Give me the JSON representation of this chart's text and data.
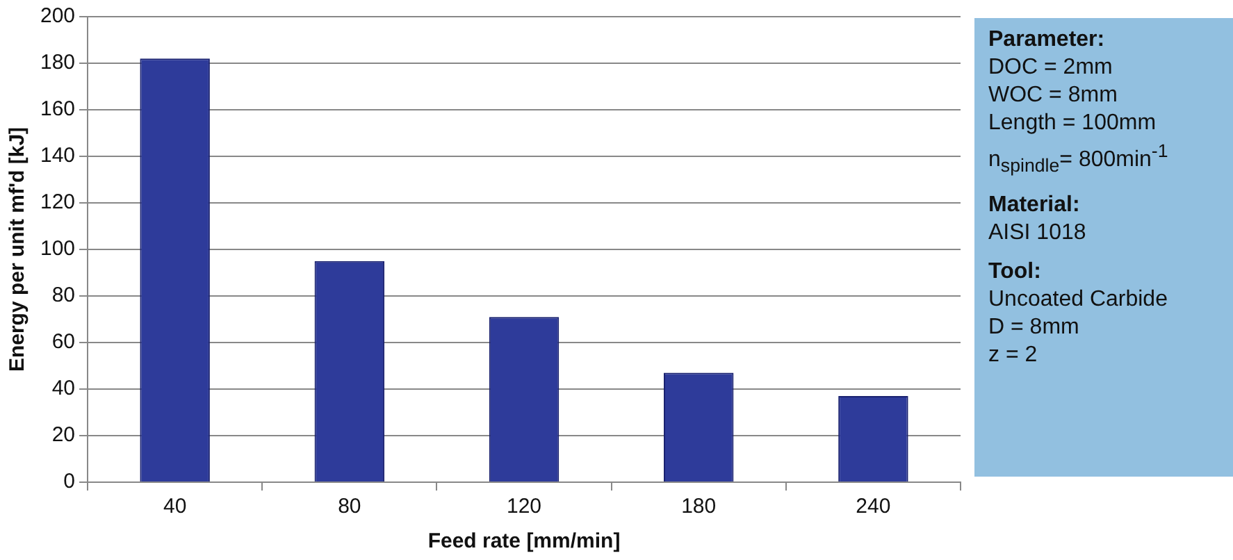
{
  "chart_data": {
    "type": "bar",
    "xlabel": "Feed rate [mm/min]",
    "ylabel": "Energy per unit mf'd [kJ]",
    "categories": [
      "40",
      "80",
      "120",
      "180",
      "240"
    ],
    "values": [
      182,
      95,
      71,
      47,
      37
    ],
    "color": "#2e3b9a",
    "ylim": [
      0,
      200
    ],
    "yticks": [
      0,
      20,
      40,
      60,
      80,
      100,
      120,
      140,
      160,
      180,
      200
    ],
    "grid": "y",
    "annotations": [
      "Parameter:",
      "DOC = 2mm",
      "WOC = 8mm",
      "Length = 100mm",
      "n$_{spindle}$= 800min$^{-1}$",
      "Material:",
      "AISI 1018",
      "Tool:",
      "Uncoated Carbide",
      "D = 8mm",
      "z = 2"
    ]
  }
}
